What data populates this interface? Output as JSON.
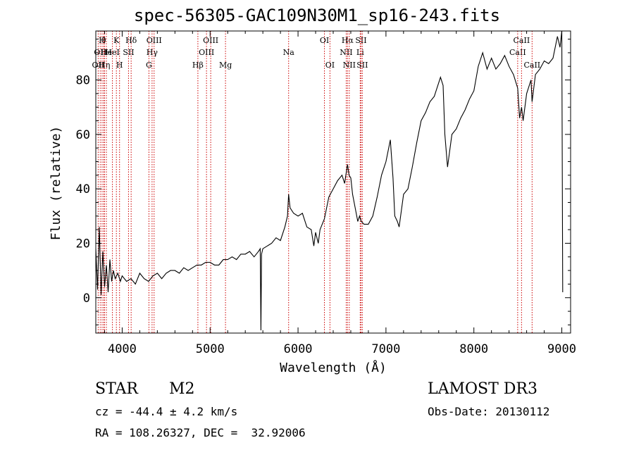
{
  "title": "spec-56305-GAC109N30M1_sp16-243.fits",
  "info": {
    "object_class": "STAR",
    "subclass": "M2",
    "survey": "LAMOST DR3",
    "cz": "cz = -44.4 ± 4.2 km/s",
    "obs_date": "Obs-Date: 20130112",
    "coords": "RA = 108.26327, DEC =  32.92006"
  },
  "chart_data": {
    "type": "line",
    "title": "spec-56305-GAC109N30M1_sp16-243.fits",
    "xlabel": "Wavelength (Å)",
    "ylabel": "Flux (relative)",
    "xlim": [
      3700,
      9100
    ],
    "ylim": [
      -13,
      98
    ],
    "xticks": [
      4000,
      5000,
      6000,
      7000,
      8000,
      9000
    ],
    "yticks": [
      0,
      20,
      40,
      60,
      80
    ],
    "grid": false,
    "line_color": "#000000",
    "marker_color": "#cc0000",
    "series": [
      {
        "name": "spectrum",
        "x": [
          3700,
          3720,
          3740,
          3760,
          3780,
          3800,
          3820,
          3840,
          3860,
          3880,
          3900,
          3920,
          3950,
          3980,
          4000,
          4050,
          4100,
          4150,
          4200,
          4250,
          4300,
          4350,
          4400,
          4450,
          4500,
          4550,
          4600,
          4650,
          4700,
          4750,
          4800,
          4850,
          4900,
          4950,
          5000,
          5050,
          5100,
          5150,
          5200,
          5250,
          5300,
          5350,
          5400,
          5450,
          5500,
          5550,
          5570,
          5578,
          5585,
          5600,
          5650,
          5700,
          5750,
          5800,
          5850,
          5880,
          5893,
          5910,
          5950,
          6000,
          6050,
          6100,
          6150,
          6180,
          6200,
          6230,
          6250,
          6300,
          6350,
          6400,
          6450,
          6500,
          6530,
          6563,
          6580,
          6600,
          6620,
          6650,
          6680,
          6700,
          6720,
          6750,
          6800,
          6850,
          6900,
          6950,
          7000,
          7050,
          7080,
          7100,
          7130,
          7150,
          7200,
          7250,
          7300,
          7350,
          7400,
          7450,
          7500,
          7550,
          7600,
          7620,
          7650,
          7670,
          7700,
          7750,
          7800,
          7850,
          7900,
          7950,
          8000,
          8050,
          8100,
          8150,
          8200,
          8250,
          8300,
          8350,
          8400,
          8450,
          8498,
          8520,
          8542,
          8560,
          8600,
          8650,
          8662,
          8700,
          8750,
          8800,
          8850,
          8900,
          8950,
          8980,
          9000,
          9010
        ],
        "y": [
          18,
          3,
          26,
          1,
          17,
          4,
          12,
          2,
          14,
          6,
          10,
          7,
          9,
          6,
          8,
          6,
          7,
          5,
          9,
          7,
          6,
          8,
          9,
          7,
          9,
          10,
          10,
          9,
          11,
          10,
          11,
          12,
          12,
          13,
          13,
          12,
          12,
          14,
          14,
          15,
          14,
          16,
          16,
          17,
          15,
          17,
          18,
          -12,
          16,
          18,
          19,
          20,
          22,
          21,
          26,
          30,
          38,
          33,
          31,
          30,
          31,
          26,
          25,
          19,
          24,
          20,
          25,
          29,
          37,
          40,
          43,
          45,
          42,
          49,
          45,
          44,
          38,
          33,
          28,
          30,
          28,
          27,
          27,
          30,
          37,
          45,
          50,
          58,
          44,
          30,
          28,
          26,
          38,
          40,
          48,
          57,
          65,
          68,
          72,
          74,
          79,
          81,
          78,
          60,
          48,
          60,
          62,
          66,
          69,
          73,
          76,
          85,
          90,
          84,
          88,
          84,
          86,
          89,
          85,
          82,
          77,
          66,
          70,
          65,
          75,
          80,
          72,
          82,
          84,
          87,
          86,
          88,
          96,
          92,
          98,
          2
        ]
      }
    ],
    "line_markers": [
      {
        "wavelength": 3727,
        "label": "OII",
        "row": 3
      },
      {
        "wavelength": 3750,
        "label": "OII",
        "row": 2
      },
      {
        "wavelength": 3771,
        "label": "H",
        "row": 1
      },
      {
        "wavelength": 3790,
        "label": "θ",
        "row": 1
      },
      {
        "wavelength": 3798,
        "label": "Hη",
        "row": 3
      },
      {
        "wavelength": 3820,
        "label": "He",
        "row": 2
      },
      {
        "wavelength": 3889,
        "label": "HeI",
        "row": 2
      },
      {
        "wavelength": 3934,
        "label": "K",
        "row": 1
      },
      {
        "wavelength": 3970,
        "label": "H",
        "row": 3
      },
      {
        "wavelength": 4072,
        "label": "SII",
        "row": 2
      },
      {
        "wavelength": 4102,
        "label": "Hδ",
        "row": 1
      },
      {
        "wavelength": 4304,
        "label": "G",
        "row": 3
      },
      {
        "wavelength": 4340,
        "label": "Hγ",
        "row": 2
      },
      {
        "wavelength": 4363,
        "label": "OIII",
        "row": 1
      },
      {
        "wavelength": 4861,
        "label": "Hβ",
        "row": 3
      },
      {
        "wavelength": 4959,
        "label": "OIII",
        "row": 2
      },
      {
        "wavelength": 5007,
        "label": "OIII",
        "row": 1
      },
      {
        "wavelength": 5175,
        "label": "Mg",
        "row": 3
      },
      {
        "wavelength": 5893,
        "label": "Na",
        "row": 2
      },
      {
        "wavelength": 6300,
        "label": "OI",
        "row": 1
      },
      {
        "wavelength": 6363,
        "label": "OI",
        "row": 3
      },
      {
        "wavelength": 6548,
        "label": "NII",
        "row": 2
      },
      {
        "wavelength": 6563,
        "label": "Hα",
        "row": 1
      },
      {
        "wavelength": 6583,
        "label": "NII",
        "row": 3
      },
      {
        "wavelength": 6707,
        "label": "Li",
        "row": 2
      },
      {
        "wavelength": 6716,
        "label": "SII",
        "row": 1
      },
      {
        "wavelength": 6731,
        "label": "SII",
        "row": 3
      },
      {
        "wavelength": 8498,
        "label": "CaII",
        "row": 2
      },
      {
        "wavelength": 8542,
        "label": "CaII",
        "row": 1
      },
      {
        "wavelength": 8662,
        "label": "CaII",
        "row": 3
      }
    ]
  }
}
